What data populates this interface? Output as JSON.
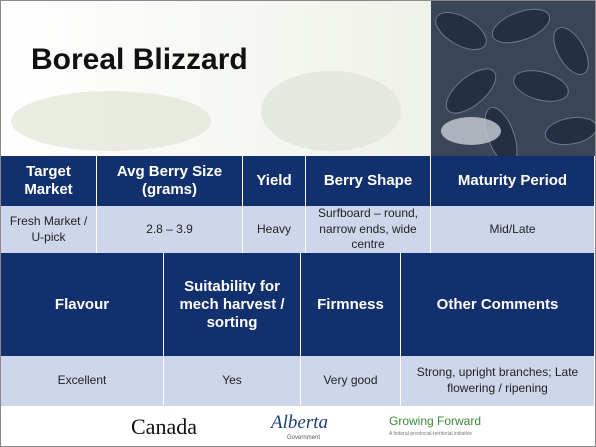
{
  "title": "Boreal Blizzard",
  "table1": {
    "headers": [
      "Target Market",
      "Avg Berry Size (grams)",
      "Yield",
      "Berry Shape",
      "Maturity Period"
    ],
    "row": [
      "Fresh Market / U-pick",
      "2.8 – 3.9",
      "Heavy",
      "Surfboard – round, narrow ends, wide centre",
      "Mid/Late"
    ]
  },
  "table2": {
    "headers": [
      "Flavour",
      "Suitability for mech harvest / sorting",
      "Firmness",
      "Other Comments"
    ],
    "row": [
      "Excellent",
      "Yes",
      "Very good",
      "Strong, upright branches; Late flowering / ripening"
    ]
  },
  "footer": {
    "logos": [
      "Canada",
      "Alberta",
      "Government",
      "Growing Forward",
      "A federal-provincial-territorial initiative"
    ]
  }
}
